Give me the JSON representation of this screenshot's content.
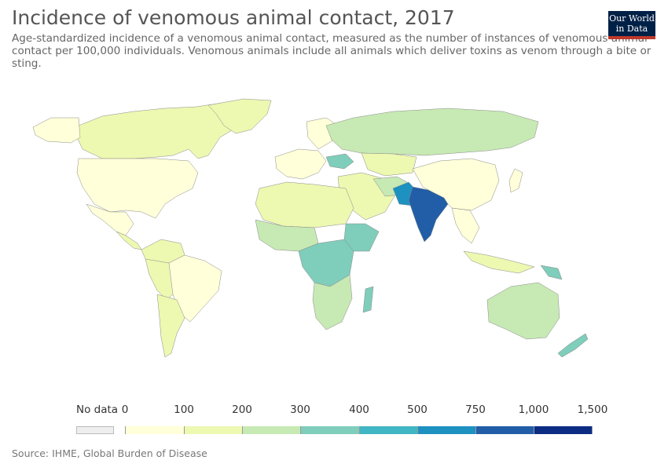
{
  "header": {
    "title": "Incidence of venomous animal contact, 2017",
    "subtitle": "Age-standardized incidence of a venomous animal contact, measured as the number of instances of venomous animal contact per 100,000 individuals. Venomous animals include all animals which deliver toxins as venom through a bite or sting.",
    "logo_line1": "Our World",
    "logo_line2": "in Data"
  },
  "legend": {
    "no_data_label": "No data",
    "no_data_color": "#eeeeee",
    "tick_labels": [
      "0",
      "100",
      "200",
      "300",
      "400",
      "500",
      "750",
      "1,000",
      "1,500"
    ],
    "bin_colors": [
      "#ffffd9",
      "#edf8b1",
      "#c7e9b4",
      "#7fcdbb",
      "#41b6c4",
      "#1d91c0",
      "#225ea8",
      "#0c2c84"
    ]
  },
  "footer": {
    "source": "Source: IHME, Global Burden of Disease"
  }
}
